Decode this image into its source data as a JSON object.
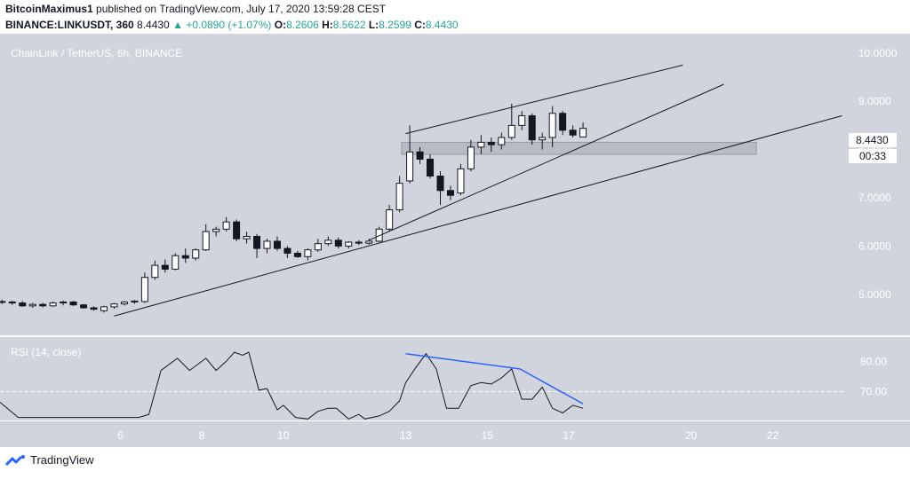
{
  "header": {
    "author": "BitcoinMaximus1",
    "published_text": "published on TradingView.com, July 17, 2020 13:59:28 CEST",
    "symbol": "BINANCE:LINKUSDT, 360",
    "last": "8.4430",
    "change_arrow": "▲",
    "change": "+0.0890 (+1.07%)",
    "o_label": "O:",
    "o_value": "8.2606",
    "h_label": "H:",
    "h_value": "8.5622",
    "l_label": "L:",
    "l_value": "8.2599",
    "c_label": "C:",
    "c_value": "8.4430"
  },
  "footer": {
    "brand": "TradingView",
    "logo_icon": "tradingview-logo-icon"
  },
  "colors": {
    "panel_bg": "#d1d4dc",
    "up_fill": "#ffffff",
    "down_fill": "#131722",
    "rsi_line": "#131722",
    "divergence": "#2962ff",
    "text_accent": "#26a69a",
    "zone": "#b2b5be"
  },
  "chart_data": [
    {
      "type": "candlestick",
      "title": "ChainLink / TetherUS, 6h, BINANCE",
      "y_ticks": [
        "10.0000",
        "9.0000",
        "8.0000",
        "7.0000",
        "6.0000",
        "5.0000"
      ],
      "ylim": [
        4.15,
        10.4
      ],
      "x_ticks": [
        "6",
        "8",
        "10",
        "13",
        "15",
        "17",
        "20",
        "22"
      ],
      "x_tick_days": [
        6,
        8,
        10,
        13,
        15,
        17,
        20,
        22
      ],
      "xlim": [
        3.05,
        23.8
      ],
      "last_price_label": "8.4430",
      "countdown_label": "00:33",
      "candles": [
        {
          "t": 3.1,
          "o": 4.85,
          "h": 4.89,
          "l": 4.8,
          "c": 4.84
        },
        {
          "t": 3.35,
          "o": 4.84,
          "h": 4.87,
          "l": 4.78,
          "c": 4.82
        },
        {
          "t": 3.6,
          "o": 4.82,
          "h": 4.86,
          "l": 4.74,
          "c": 4.76
        },
        {
          "t": 3.85,
          "o": 4.76,
          "h": 4.82,
          "l": 4.72,
          "c": 4.79
        },
        {
          "t": 4.1,
          "o": 4.79,
          "h": 4.82,
          "l": 4.73,
          "c": 4.76
        },
        {
          "t": 4.35,
          "o": 4.76,
          "h": 4.85,
          "l": 4.74,
          "c": 4.82
        },
        {
          "t": 4.6,
          "o": 4.82,
          "h": 4.87,
          "l": 4.77,
          "c": 4.84
        },
        {
          "t": 4.85,
          "o": 4.84,
          "h": 4.86,
          "l": 4.76,
          "c": 4.78
        },
        {
          "t": 5.1,
          "o": 4.78,
          "h": 4.8,
          "l": 4.7,
          "c": 4.72
        },
        {
          "t": 5.35,
          "o": 4.72,
          "h": 4.75,
          "l": 4.66,
          "c": 4.69
        },
        {
          "t": 5.6,
          "o": 4.66,
          "h": 4.76,
          "l": 4.62,
          "c": 4.74
        },
        {
          "t": 5.85,
          "o": 4.74,
          "h": 4.82,
          "l": 4.7,
          "c": 4.8
        },
        {
          "t": 6.1,
          "o": 4.8,
          "h": 4.86,
          "l": 4.77,
          "c": 4.84
        },
        {
          "t": 6.35,
          "o": 4.84,
          "h": 4.88,
          "l": 4.8,
          "c": 4.86
        },
        {
          "t": 6.6,
          "o": 4.85,
          "h": 5.45,
          "l": 4.82,
          "c": 5.35
        },
        {
          "t": 6.85,
          "o": 5.35,
          "h": 5.7,
          "l": 5.3,
          "c": 5.6
        },
        {
          "t": 7.1,
          "o": 5.6,
          "h": 5.72,
          "l": 5.45,
          "c": 5.52
        },
        {
          "t": 7.35,
          "o": 5.52,
          "h": 5.85,
          "l": 5.5,
          "c": 5.8
        },
        {
          "t": 7.6,
          "o": 5.8,
          "h": 5.95,
          "l": 5.65,
          "c": 5.75
        },
        {
          "t": 7.85,
          "o": 5.75,
          "h": 5.95,
          "l": 5.7,
          "c": 5.92
        },
        {
          "t": 8.1,
          "o": 5.92,
          "h": 6.45,
          "l": 5.9,
          "c": 6.3
        },
        {
          "t": 8.35,
          "o": 6.3,
          "h": 6.4,
          "l": 6.2,
          "c": 6.35
        },
        {
          "t": 8.6,
          "o": 6.35,
          "h": 6.6,
          "l": 6.3,
          "c": 6.5
        },
        {
          "t": 8.85,
          "o": 6.5,
          "h": 6.55,
          "l": 6.1,
          "c": 6.15
        },
        {
          "t": 9.1,
          "o": 6.15,
          "h": 6.3,
          "l": 6.05,
          "c": 6.2
        },
        {
          "t": 9.35,
          "o": 6.2,
          "h": 6.25,
          "l": 5.75,
          "c": 5.95
        },
        {
          "t": 9.6,
          "o": 5.95,
          "h": 6.15,
          "l": 5.85,
          "c": 6.1
        },
        {
          "t": 9.85,
          "o": 6.1,
          "h": 6.2,
          "l": 5.9,
          "c": 5.95
        },
        {
          "t": 10.1,
          "o": 5.95,
          "h": 6.0,
          "l": 5.75,
          "c": 5.85
        },
        {
          "t": 10.35,
          "o": 5.85,
          "h": 5.9,
          "l": 5.75,
          "c": 5.78
        },
        {
          "t": 10.6,
          "o": 5.78,
          "h": 5.95,
          "l": 5.7,
          "c": 5.92
        },
        {
          "t": 10.85,
          "o": 5.92,
          "h": 6.15,
          "l": 5.88,
          "c": 6.05
        },
        {
          "t": 11.1,
          "o": 6.05,
          "h": 6.2,
          "l": 6.0,
          "c": 6.12
        },
        {
          "t": 11.35,
          "o": 6.12,
          "h": 6.18,
          "l": 5.95,
          "c": 6.0
        },
        {
          "t": 11.6,
          "o": 6.0,
          "h": 6.1,
          "l": 5.95,
          "c": 6.08
        },
        {
          "t": 11.85,
          "o": 6.08,
          "h": 6.12,
          "l": 6.02,
          "c": 6.06
        },
        {
          "t": 12.1,
          "o": 6.06,
          "h": 6.15,
          "l": 6.03,
          "c": 6.1
        },
        {
          "t": 12.35,
          "o": 6.1,
          "h": 6.4,
          "l": 6.08,
          "c": 6.35
        },
        {
          "t": 12.6,
          "o": 6.35,
          "h": 6.85,
          "l": 6.3,
          "c": 6.75
        },
        {
          "t": 12.85,
          "o": 6.75,
          "h": 7.45,
          "l": 6.7,
          "c": 7.3
        },
        {
          "t": 13.1,
          "o": 7.35,
          "h": 8.5,
          "l": 7.3,
          "c": 7.95
        },
        {
          "t": 13.35,
          "o": 7.95,
          "h": 8.05,
          "l": 7.7,
          "c": 7.8
        },
        {
          "t": 13.6,
          "o": 7.8,
          "h": 7.9,
          "l": 7.4,
          "c": 7.45
        },
        {
          "t": 13.85,
          "o": 7.45,
          "h": 7.55,
          "l": 6.85,
          "c": 7.15
        },
        {
          "t": 14.1,
          "o": 7.15,
          "h": 7.25,
          "l": 6.95,
          "c": 7.05
        },
        {
          "t": 14.35,
          "o": 7.1,
          "h": 7.7,
          "l": 7.05,
          "c": 7.6
        },
        {
          "t": 14.6,
          "o": 7.6,
          "h": 8.2,
          "l": 7.55,
          "c": 8.05
        },
        {
          "t": 14.85,
          "o": 8.05,
          "h": 8.3,
          "l": 7.9,
          "c": 8.15
        },
        {
          "t": 15.1,
          "o": 8.15,
          "h": 8.25,
          "l": 7.95,
          "c": 8.1
        },
        {
          "t": 15.35,
          "o": 8.1,
          "h": 8.35,
          "l": 8.0,
          "c": 8.25
        },
        {
          "t": 15.6,
          "o": 8.25,
          "h": 8.95,
          "l": 8.2,
          "c": 8.5
        },
        {
          "t": 15.85,
          "o": 8.5,
          "h": 8.8,
          "l": 8.4,
          "c": 8.7
        },
        {
          "t": 16.1,
          "o": 8.7,
          "h": 8.75,
          "l": 8.1,
          "c": 8.2
        },
        {
          "t": 16.35,
          "o": 8.2,
          "h": 8.35,
          "l": 8.0,
          "c": 8.25
        },
        {
          "t": 16.6,
          "o": 8.25,
          "h": 8.9,
          "l": 8.05,
          "c": 8.75
        },
        {
          "t": 16.85,
          "o": 8.75,
          "h": 8.8,
          "l": 8.3,
          "c": 8.4
        },
        {
          "t": 17.1,
          "o": 8.4,
          "h": 8.5,
          "l": 8.25,
          "c": 8.3
        },
        {
          "t": 17.35,
          "o": 8.26,
          "h": 8.56,
          "l": 8.26,
          "c": 8.44
        }
      ],
      "trendlines": [
        {
          "from": [
            5.85,
            4.55
          ],
          "to": [
            23.7,
            8.7
          ]
        },
        {
          "from": [
            12.1,
            6.12
          ],
          "to": [
            20.8,
            9.35
          ]
        },
        {
          "from": [
            13.0,
            8.33
          ],
          "to": [
            19.8,
            9.75
          ]
        }
      ],
      "zone": {
        "t_from": 12.9,
        "t_to": 21.6,
        "p_low": 7.9,
        "p_high": 8.15
      }
    },
    {
      "type": "line",
      "title": "RSI (14, close)",
      "y_ticks": [
        "80.00",
        "70.00"
      ],
      "ylim": [
        60.5,
        88
      ],
      "reference_level": 70,
      "x": [
        3.05,
        3.5,
        6.45,
        6.7,
        7.0,
        7.4,
        7.7,
        8.1,
        8.35,
        8.6,
        8.8,
        9.0,
        9.15,
        9.4,
        9.6,
        9.85,
        10.0,
        10.3,
        10.6,
        10.85,
        11.1,
        11.3,
        11.6,
        11.85,
        12.0,
        12.35,
        12.6,
        12.85,
        13.0,
        13.25,
        13.5,
        13.75,
        14.0,
        14.3,
        14.6,
        14.85,
        15.1,
        15.35,
        15.6,
        15.85,
        16.1,
        16.35,
        16.6,
        16.85,
        17.1,
        17.35
      ],
      "values": [
        66.5,
        61.5,
        61.5,
        62.5,
        77.0,
        81.0,
        77.0,
        81.0,
        77.0,
        80.0,
        83.0,
        82.0,
        83.0,
        70.5,
        71.0,
        64.0,
        65.5,
        61.5,
        61.0,
        63.5,
        64.5,
        64.5,
        61.0,
        62.5,
        61.0,
        62.0,
        63.5,
        67.0,
        73.0,
        78.0,
        82.5,
        77.5,
        64.5,
        64.5,
        72.0,
        73.0,
        72.5,
        74.5,
        77.5,
        67.5,
        67.5,
        71.5,
        64.5,
        63.0,
        65.5,
        64.5
      ],
      "divergence_lines": [
        {
          "from": [
            13.0,
            82.5
          ],
          "to": [
            15.8,
            77.5
          ]
        },
        {
          "from": [
            15.8,
            77.5
          ],
          "to": [
            17.35,
            66.0
          ]
        }
      ]
    }
  ]
}
